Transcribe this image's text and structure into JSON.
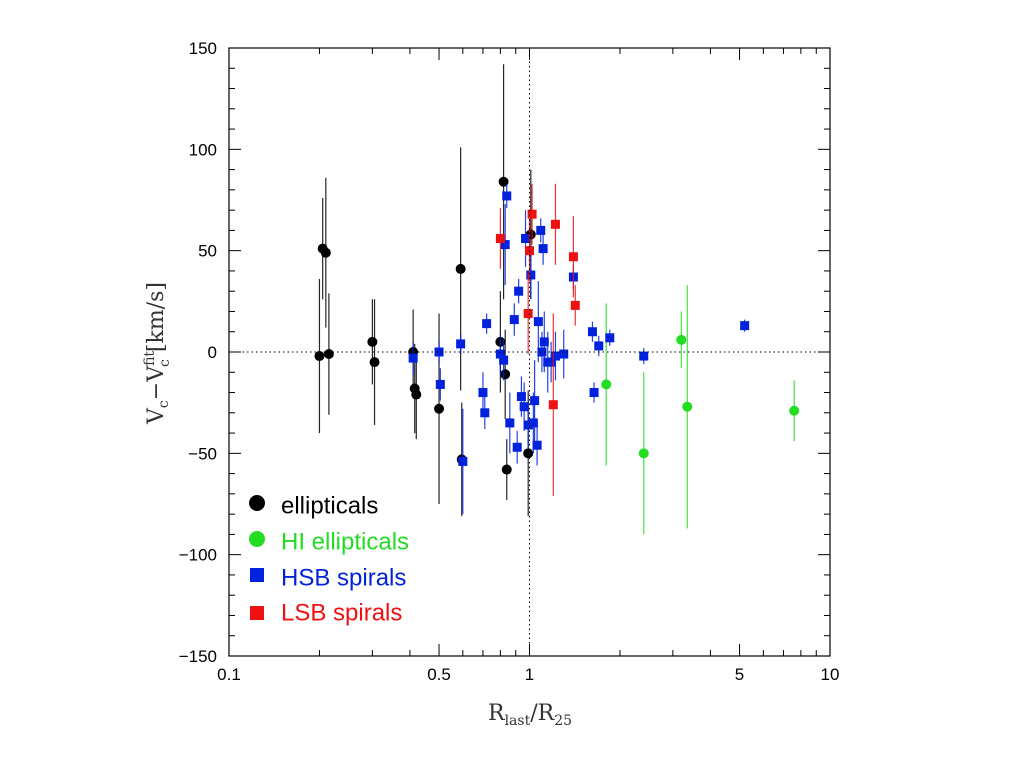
{
  "chart_data": {
    "type": "scatter",
    "xlabel": {
      "main": "R",
      "sub1": "last",
      "slash": "/R",
      "sub2": "25"
    },
    "ylabel": {
      "main": "V",
      "sub1": "c",
      "mid": "−V",
      "sup": "fit",
      "sub2": "c",
      "unit": " [km/s]"
    },
    "x_scale": "log",
    "xlim": [
      0.1,
      10
    ],
    "ylim": [
      -150,
      150
    ],
    "x_ticks": [
      {
        "value": 0.1,
        "label": "0.1"
      },
      {
        "value": 0.5,
        "label": "0.5"
      },
      {
        "value": 1,
        "label": "1"
      },
      {
        "value": 5,
        "label": "5"
      },
      {
        "value": 10,
        "label": "10"
      }
    ],
    "y_ticks": [
      {
        "value": -150,
        "label": "−150"
      },
      {
        "value": -100,
        "label": "−100"
      },
      {
        "value": -50,
        "label": "−50"
      },
      {
        "value": 0,
        "label": "0"
      },
      {
        "value": 50,
        "label": "50"
      },
      {
        "value": 100,
        "label": "100"
      },
      {
        "value": 150,
        "label": "150"
      }
    ],
    "reference_lines": {
      "y": 0,
      "x": 1,
      "style": "dotted"
    },
    "legend_position": "bottom-left",
    "series": [
      {
        "name": "ellipticals",
        "color": "#000000",
        "marker": "circle",
        "points": [
          {
            "x": 0.2,
            "y": -2,
            "e": 38
          },
          {
            "x": 0.205,
            "y": 51,
            "e": 25
          },
          {
            "x": 0.21,
            "y": 49,
            "e": 37
          },
          {
            "x": 0.215,
            "y": -1,
            "e": 30
          },
          {
            "x": 0.3,
            "y": 5,
            "e": 21
          },
          {
            "x": 0.305,
            "y": -5,
            "e": 31
          },
          {
            "x": 0.41,
            "y": 0,
            "e": 21
          },
          {
            "x": 0.415,
            "y": -18,
            "e": 22
          },
          {
            "x": 0.42,
            "y": -21,
            "e": 22
          },
          {
            "x": 0.5,
            "y": -28,
            "e": 47
          },
          {
            "x": 0.59,
            "y": 41,
            "e": 60
          },
          {
            "x": 0.595,
            "y": -53,
            "e": 28
          },
          {
            "x": 0.8,
            "y": 5,
            "e": 25
          },
          {
            "x": 0.82,
            "y": 84,
            "e": 58
          },
          {
            "x": 0.83,
            "y": -11,
            "e": 22
          },
          {
            "x": 0.84,
            "y": -58,
            "e": 15
          },
          {
            "x": 0.99,
            "y": -50,
            "e": 31
          },
          {
            "x": 1.01,
            "y": 58,
            "e": 32
          }
        ]
      },
      {
        "name": "HI ellipticals",
        "color": "#22dd22",
        "marker": "circle",
        "points": [
          {
            "x": 1.8,
            "y": -16,
            "e": 40
          },
          {
            "x": 2.4,
            "y": -50,
            "e": 40
          },
          {
            "x": 3.2,
            "y": 6,
            "e": 14
          },
          {
            "x": 3.35,
            "y": -27,
            "e": 60
          },
          {
            "x": 7.6,
            "y": -29,
            "e": 15
          }
        ]
      },
      {
        "name": "HSB spirals",
        "color": "#0022dd",
        "marker": "square",
        "points": [
          {
            "x": 0.41,
            "y": -3,
            "e": 8
          },
          {
            "x": 0.5,
            "y": 0,
            "e": 6
          },
          {
            "x": 0.505,
            "y": -16,
            "e": 8
          },
          {
            "x": 0.59,
            "y": 4,
            "e": 5
          },
          {
            "x": 0.6,
            "y": -54,
            "e": 26
          },
          {
            "x": 0.7,
            "y": -20,
            "e": 10
          },
          {
            "x": 0.71,
            "y": -30,
            "e": 8
          },
          {
            "x": 0.72,
            "y": 14,
            "e": 5
          },
          {
            "x": 0.8,
            "y": -1,
            "e": 10
          },
          {
            "x": 0.82,
            "y": -4,
            "e": 10
          },
          {
            "x": 0.83,
            "y": 53,
            "e": 20
          },
          {
            "x": 0.84,
            "y": 77,
            "e": 6
          },
          {
            "x": 0.86,
            "y": -35,
            "e": 15
          },
          {
            "x": 0.89,
            "y": 16,
            "e": 8
          },
          {
            "x": 0.91,
            "y": -47,
            "e": 8
          },
          {
            "x": 0.92,
            "y": 30,
            "e": 6
          },
          {
            "x": 0.94,
            "y": -22,
            "e": 10
          },
          {
            "x": 0.96,
            "y": -27,
            "e": 12
          },
          {
            "x": 0.97,
            "y": 56,
            "e": 14
          },
          {
            "x": 0.99,
            "y": -36,
            "e": 12
          },
          {
            "x": 1.01,
            "y": 38,
            "e": 12
          },
          {
            "x": 1.03,
            "y": -35,
            "e": 15
          },
          {
            "x": 1.04,
            "y": -24,
            "e": 20
          },
          {
            "x": 1.06,
            "y": -46,
            "e": 10
          },
          {
            "x": 1.07,
            "y": 15,
            "e": 20
          },
          {
            "x": 1.09,
            "y": 60,
            "e": 6
          },
          {
            "x": 1.1,
            "y": 0,
            "e": 10
          },
          {
            "x": 1.11,
            "y": 51,
            "e": 8
          },
          {
            "x": 1.12,
            "y": 5,
            "e": 15
          },
          {
            "x": 1.15,
            "y": -5,
            "e": 15
          },
          {
            "x": 1.18,
            "y": -5,
            "e": 10
          },
          {
            "x": 1.22,
            "y": -2,
            "e": 12
          },
          {
            "x": 1.3,
            "y": -1,
            "e": 12
          },
          {
            "x": 1.4,
            "y": 37,
            "e": 6
          },
          {
            "x": 1.62,
            "y": 10,
            "e": 5
          },
          {
            "x": 1.64,
            "y": -20,
            "e": 5
          },
          {
            "x": 1.7,
            "y": 3,
            "e": 5
          },
          {
            "x": 1.85,
            "y": 7,
            "e": 4
          },
          {
            "x": 2.4,
            "y": -2,
            "e": 4
          },
          {
            "x": 5.2,
            "y": 13,
            "e": 3
          }
        ]
      },
      {
        "name": "LSB spirals",
        "color": "#ee1111",
        "marker": "square",
        "points": [
          {
            "x": 0.8,
            "y": 56,
            "e": 15
          },
          {
            "x": 0.99,
            "y": 19,
            "e": 20
          },
          {
            "x": 1.0,
            "y": 50,
            "e": 15
          },
          {
            "x": 1.02,
            "y": 68,
            "e": 15
          },
          {
            "x": 1.2,
            "y": -26,
            "e": 45
          },
          {
            "x": 1.22,
            "y": 63,
            "e": 20
          },
          {
            "x": 1.4,
            "y": 47,
            "e": 20
          },
          {
            "x": 1.42,
            "y": 23,
            "e": 10
          }
        ]
      }
    ]
  }
}
